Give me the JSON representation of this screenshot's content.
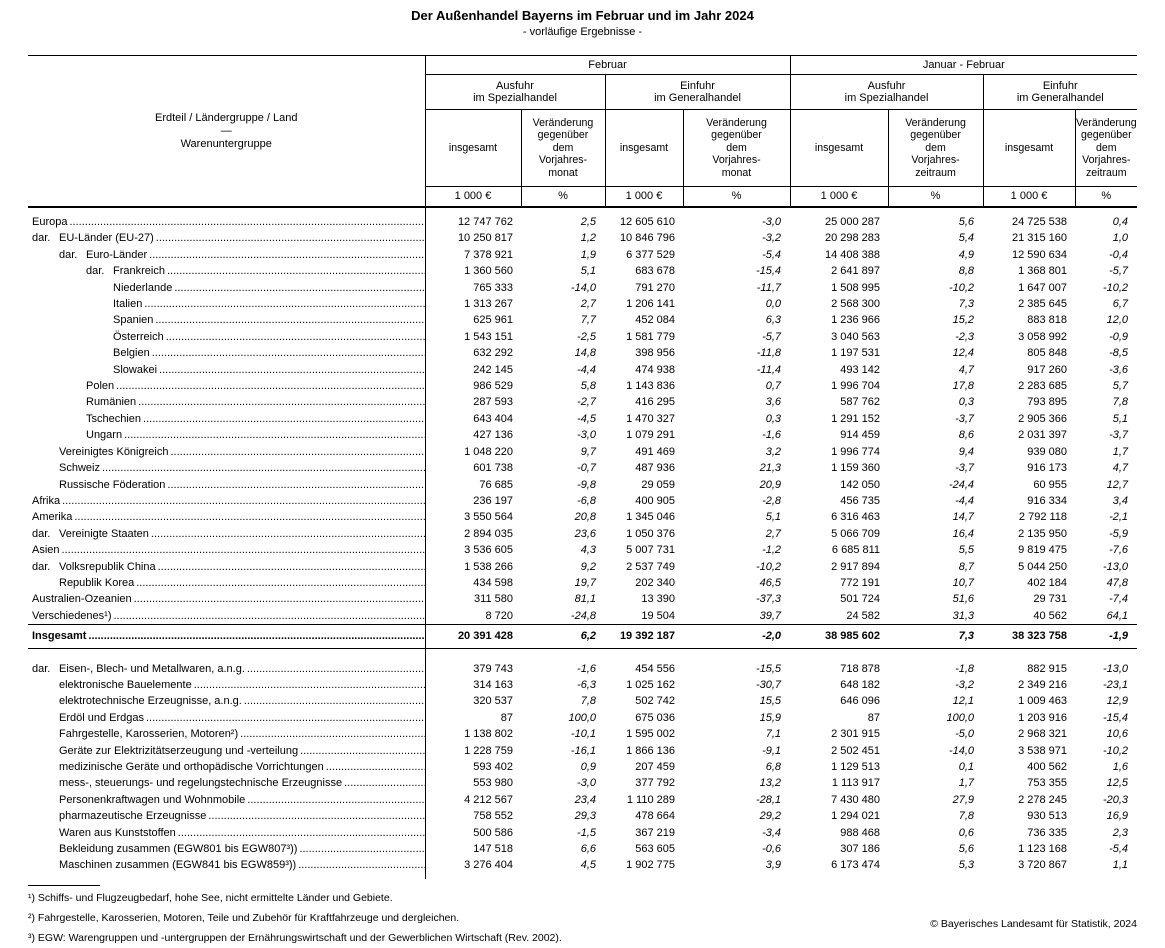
{
  "title": "Der Außenhandel Bayerns im Februar und im Jahr 2024",
  "subtitle": "- vorläufige Ergebnisse -",
  "header": {
    "stub": [
      "Erdteil / Ländergruppe / Land",
      "—",
      "Warenuntergruppe"
    ],
    "period_groups": [
      "Februar",
      "Januar - Februar"
    ],
    "trade_groups": [
      "Ausfuhr\nim Spezialhandel",
      "Einfuhr\nim Generalhandel",
      "Ausfuhr\nim Spezialhandel",
      "Einfuhr\nim Generalhandel"
    ],
    "measure_cols": [
      "insgesamt",
      "Veränderung\ngegenüber\ndem\nVorjahres-\nmonat",
      "insgesamt",
      "Veränderung\ngegenüber\ndem\nVorjahres-\nmonat",
      "insgesamt",
      "Veränderung\ngegenüber\ndem\nVorjahres-\nzeitraum",
      "insgesamt",
      "Veränderung\ngegenüber\ndem\nVorjahres-\nzeitraum"
    ],
    "unit_cols": [
      "1 000 €",
      "%",
      "1 000 €",
      "%",
      "1 000 €",
      "%",
      "1 000 €",
      "%"
    ]
  },
  "regions": [
    {
      "dar": false,
      "level": 0,
      "label": "Europa",
      "values": [
        "12 747 762",
        "2,5",
        "12 605 610",
        "-3,0",
        "25 000 287",
        "5,6",
        "24 725 538",
        "0,4"
      ]
    },
    {
      "dar": true,
      "level": 1,
      "label": "EU-Länder (EU-27)",
      "values": [
        "10 250 817",
        "1,2",
        "10 846 796",
        "-3,2",
        "20 298 283",
        "5,4",
        "21 315 160",
        "1,0"
      ]
    },
    {
      "dar": true,
      "level": 2,
      "label": "Euro-Länder",
      "values": [
        "7 378 921",
        "1,9",
        "6 377 529",
        "-5,4",
        "14 408 388",
        "4,9",
        "12 590 634",
        "-0,4"
      ]
    },
    {
      "dar": true,
      "level": 3,
      "label": "Frankreich",
      "values": [
        "1 360 560",
        "5,1",
        "683 678",
        "-15,4",
        "2 641 897",
        "8,8",
        "1 368 801",
        "-5,7"
      ]
    },
    {
      "dar": false,
      "level": 3,
      "label": "Niederlande",
      "values": [
        "765 333",
        "-14,0",
        "791 270",
        "-11,7",
        "1 508 995",
        "-10,2",
        "1 647 007",
        "-10,2"
      ]
    },
    {
      "dar": false,
      "level": 3,
      "label": "Italien",
      "values": [
        "1 313 267",
        "2,7",
        "1 206 141",
        "0,0",
        "2 568 300",
        "7,3",
        "2 385 645",
        "6,7"
      ]
    },
    {
      "dar": false,
      "level": 3,
      "label": "Spanien",
      "values": [
        "625 961",
        "7,7",
        "452 084",
        "6,3",
        "1 236 966",
        "15,2",
        "883 818",
        "12,0"
      ]
    },
    {
      "dar": false,
      "level": 3,
      "label": "Österreich",
      "values": [
        "1 543 151",
        "-2,5",
        "1 581 779",
        "-5,7",
        "3 040 563",
        "-2,3",
        "3 058 992",
        "-0,9"
      ]
    },
    {
      "dar": false,
      "level": 3,
      "label": "Belgien",
      "values": [
        "632 292",
        "14,8",
        "398 956",
        "-11,8",
        "1 197 531",
        "12,4",
        "805 848",
        "-8,5"
      ]
    },
    {
      "dar": false,
      "level": 3,
      "label": "Slowakei",
      "values": [
        "242 145",
        "-4,4",
        "474 938",
        "-11,4",
        "493 142",
        "4,7",
        "917 260",
        "-3,6"
      ]
    },
    {
      "dar": false,
      "level": 2,
      "label": "Polen",
      "values": [
        "986 529",
        "5,8",
        "1 143 836",
        "0,7",
        "1 996 704",
        "17,8",
        "2 283 685",
        "5,7"
      ]
    },
    {
      "dar": false,
      "level": 2,
      "label": "Rumänien",
      "values": [
        "287 593",
        "-2,7",
        "416 295",
        "3,6",
        "587 762",
        "0,3",
        "793 895",
        "7,8"
      ]
    },
    {
      "dar": false,
      "level": 2,
      "label": "Tschechien",
      "values": [
        "643 404",
        "-4,5",
        "1 470 327",
        "0,3",
        "1 291 152",
        "-3,7",
        "2 905 366",
        "5,1"
      ]
    },
    {
      "dar": false,
      "level": 2,
      "label": "Ungarn",
      "values": [
        "427 136",
        "-3,0",
        "1 079 291",
        "-1,6",
        "914 459",
        "8,6",
        "2 031 397",
        "-3,7"
      ]
    },
    {
      "dar": false,
      "level": 1,
      "label": "Vereinigtes Königreich",
      "values": [
        "1 048 220",
        "9,7",
        "491 469",
        "3,2",
        "1 996 774",
        "9,4",
        "939 080",
        "1,7"
      ]
    },
    {
      "dar": false,
      "level": 1,
      "label": "Schweiz",
      "values": [
        "601 738",
        "-0,7",
        "487 936",
        "21,3",
        "1 159 360",
        "-3,7",
        "916 173",
        "4,7"
      ]
    },
    {
      "dar": false,
      "level": 1,
      "label": "Russische Föderation",
      "values": [
        "76 685",
        "-9,8",
        "29 059",
        "20,9",
        "142 050",
        "-24,4",
        "60 955",
        "12,7"
      ]
    },
    {
      "dar": false,
      "level": 0,
      "label": "Afrika",
      "values": [
        "236 197",
        "-6,8",
        "400 905",
        "-2,8",
        "456 735",
        "-4,4",
        "916 334",
        "3,4"
      ]
    },
    {
      "dar": false,
      "level": 0,
      "label": "Amerika",
      "values": [
        "3 550 564",
        "20,8",
        "1 345 046",
        "5,1",
        "6 316 463",
        "14,7",
        "2 792 118",
        "-2,1"
      ]
    },
    {
      "dar": true,
      "level": 1,
      "label": "Vereinigte Staaten",
      "values": [
        "2 894 035",
        "23,6",
        "1 050 376",
        "2,7",
        "5 066 709",
        "16,4",
        "2 135 950",
        "-5,9"
      ]
    },
    {
      "dar": false,
      "level": 0,
      "label": "Asien",
      "values": [
        "3 536 605",
        "4,3",
        "5 007 731",
        "-1,2",
        "6 685 811",
        "5,5",
        "9 819 475",
        "-7,6"
      ]
    },
    {
      "dar": true,
      "level": 1,
      "label": "Volksrepublik China",
      "values": [
        "1 538 266",
        "9,2",
        "2 537 749",
        "-10,2",
        "2 917 894",
        "8,7",
        "5 044 250",
        "-13,0"
      ]
    },
    {
      "dar": false,
      "level": 1,
      "label": "Republik Korea",
      "values": [
        "434 598",
        "19,7",
        "202 340",
        "46,5",
        "772 191",
        "10,7",
        "402 184",
        "47,8"
      ]
    },
    {
      "dar": false,
      "level": 0,
      "label": "Australien-Ozeanien",
      "values": [
        "311 580",
        "81,1",
        "13 390",
        "-37,3",
        "501 724",
        "51,6",
        "29 731",
        "-7,4"
      ]
    },
    {
      "dar": false,
      "level": 0,
      "label": "Verschiedenes¹)",
      "values": [
        "8 720",
        "-24,8",
        "19 504",
        "39,7",
        "24 582",
        "31,3",
        "40 562",
        "64,1"
      ]
    }
  ],
  "total_row": {
    "dar": false,
    "level": 0,
    "label": "Insgesamt",
    "values": [
      "20 391 428",
      "6,2",
      "19 392 187",
      "-2,0",
      "38 985 602",
      "7,3",
      "38 323 758",
      "-1,9"
    ]
  },
  "goods": [
    {
      "dar": true,
      "level": 1,
      "label": "Eisen-, Blech- und Metallwaren, a.n.g.",
      "values": [
        "379 743",
        "-1,6",
        "454 556",
        "-15,5",
        "718 878",
        "-1,8",
        "882 915",
        "-13,0"
      ]
    },
    {
      "dar": false,
      "level": 1,
      "label": "elektronische Bauelemente",
      "values": [
        "314 163",
        "-6,3",
        "1 025 162",
        "-30,7",
        "648 182",
        "-3,2",
        "2 349 216",
        "-23,1"
      ]
    },
    {
      "dar": false,
      "level": 1,
      "label": "elektrotechnische Erzeugnisse, a.n.g.",
      "values": [
        "320 537",
        "7,8",
        "502 742",
        "15,5",
        "646 096",
        "12,1",
        "1 009 463",
        "12,9"
      ]
    },
    {
      "dar": false,
      "level": 1,
      "label": "Erdöl und Erdgas",
      "values": [
        "87",
        "100,0",
        "675 036",
        "15,9",
        "87",
        "100,0",
        "1 203 916",
        "-15,4"
      ]
    },
    {
      "dar": false,
      "level": 1,
      "label": "Fahrgestelle, Karosserien, Motoren²)",
      "values": [
        "1 138 802",
        "-10,1",
        "1 595 002",
        "7,1",
        "2 301 915",
        "-5,0",
        "2 968 321",
        "10,6"
      ]
    },
    {
      "dar": false,
      "level": 1,
      "label": "Geräte zur Elektrizitätserzeugung und -verteilung",
      "values": [
        "1 228 759",
        "-16,1",
        "1 866 136",
        "-9,1",
        "2 502 451",
        "-14,0",
        "3 538 971",
        "-10,2"
      ]
    },
    {
      "dar": false,
      "level": 1,
      "label": "medizinische Geräte und orthopädische Vorrichtungen",
      "values": [
        "593 402",
        "0,9",
        "207 459",
        "6,8",
        "1 129 513",
        "0,1",
        "400 562",
        "1,6"
      ]
    },
    {
      "dar": false,
      "level": 1,
      "label": "mess-, steuerungs- und regelungstechnische Erzeugnisse",
      "values": [
        "553 980",
        "-3,0",
        "377 792",
        "13,2",
        "1 113 917",
        "1,7",
        "753 355",
        "12,5"
      ]
    },
    {
      "dar": false,
      "level": 1,
      "label": "Personenkraftwagen und Wohnmobile",
      "values": [
        "4 212 567",
        "23,4",
        "1 110 289",
        "-28,1",
        "7 430 480",
        "27,9",
        "2 278 245",
        "-20,3"
      ]
    },
    {
      "dar": false,
      "level": 1,
      "label": "pharmazeutische Erzeugnisse",
      "values": [
        "758 552",
        "29,3",
        "478 664",
        "29,2",
        "1 294 021",
        "7,8",
        "930 513",
        "16,9"
      ]
    },
    {
      "dar": false,
      "level": 1,
      "label": "Waren aus Kunststoffen",
      "values": [
        "500 586",
        "-1,5",
        "367 219",
        "-3,4",
        "988 468",
        "0,6",
        "736 335",
        "2,3"
      ]
    },
    {
      "dar": false,
      "level": 1,
      "label": "Bekleidung zusammen (EGW801 bis EGW807³))",
      "values": [
        "147 518",
        "6,6",
        "563 605",
        "-0,6",
        "307 186",
        "5,6",
        "1 123 168",
        "-5,4"
      ]
    },
    {
      "dar": false,
      "level": 1,
      "label": "Maschinen zusammen (EGW841 bis EGW859³))",
      "values": [
        "3 276 404",
        "4,5",
        "1 902 775",
        "3,9",
        "6 173 474",
        "5,3",
        "3 720 867",
        "1,1"
      ]
    }
  ],
  "footnotes": [
    "¹) Schiffs- und Flugzeugbedarf, hohe See, nicht ermittelte Länder und Gebiete.",
    "²) Fahrgestelle, Karosserien, Motoren, Teile und Zubehör für Kraftfahrzeuge und dergleichen.",
    "³) EGW: Warengruppen und -untergruppen der Ernährungswirtschaft und der Gewerblichen Wirtschaft (Rev. 2002)."
  ],
  "copyright": "© Bayerisches Landesamt für Statistik, 2024"
}
